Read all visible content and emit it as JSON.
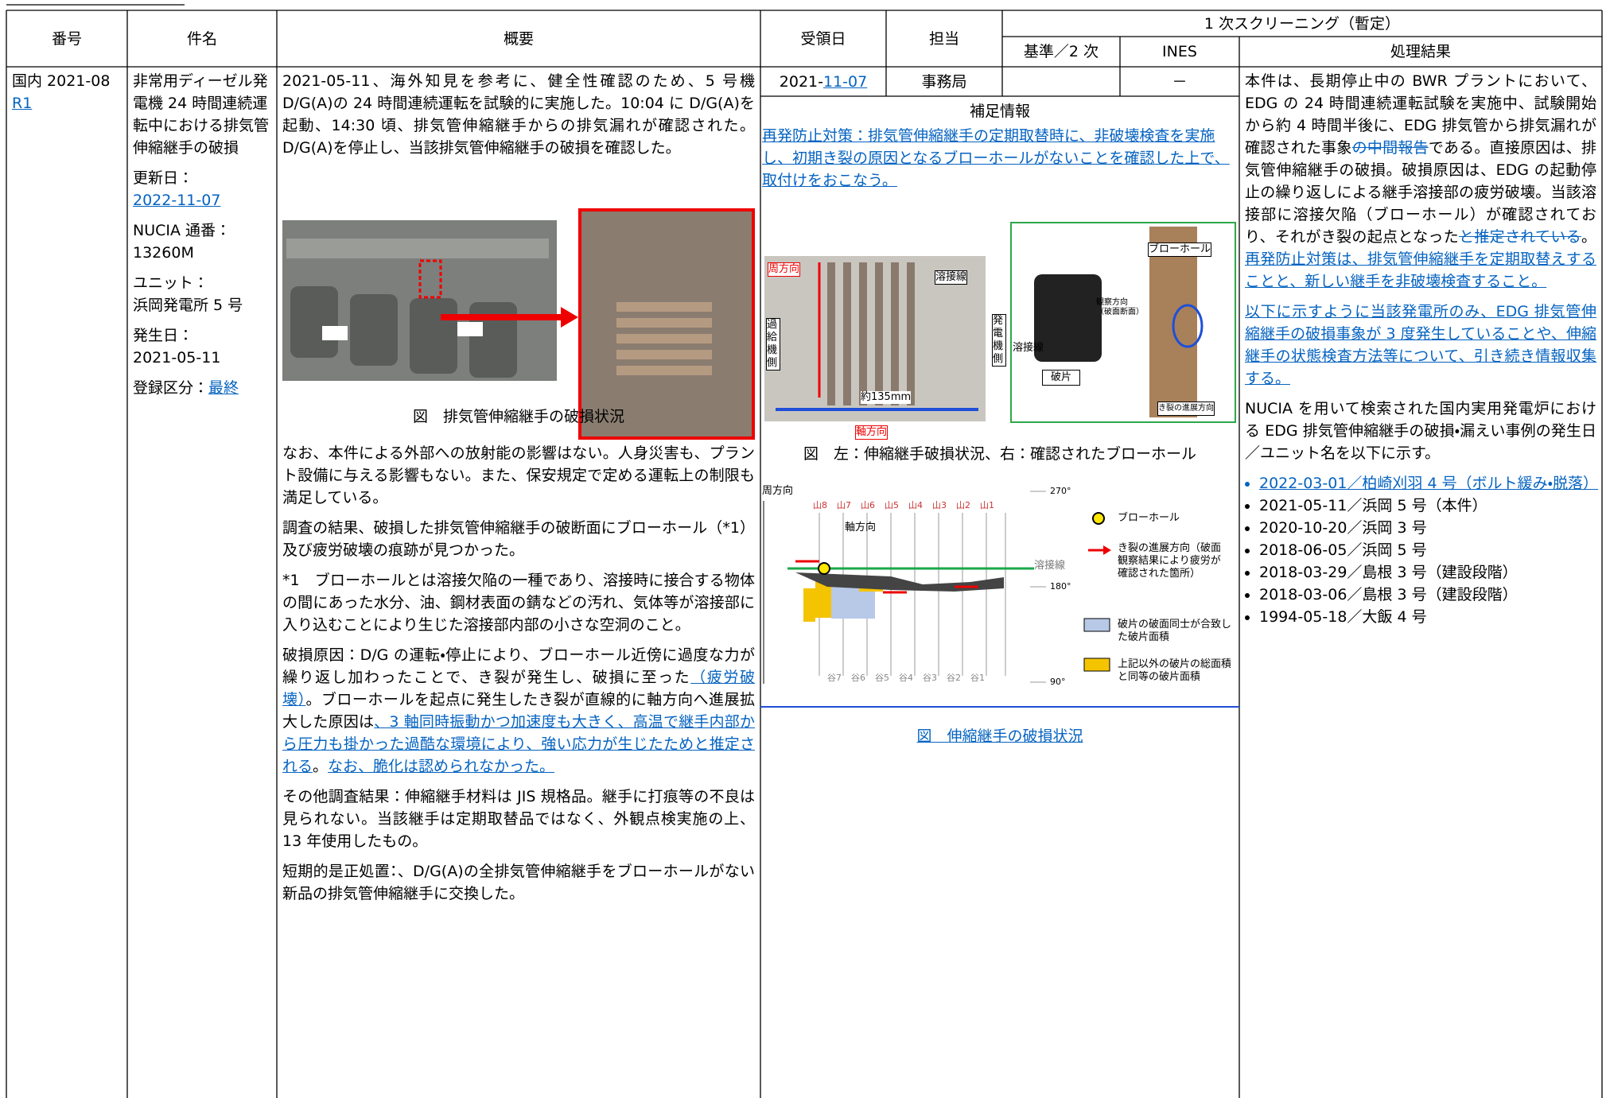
{
  "header": {
    "no": "番号",
    "subject": "件名",
    "summary": "概要",
    "received": "受領日",
    "staff": "担当",
    "screening": "1 次スクリーニング（暫定）",
    "criteria": "基準／2 次",
    "ines": "INES",
    "result": "処理結果"
  },
  "record": {
    "no": "国内 2021-08",
    "rev": "R1",
    "subject": "非常用ディーゼル発電機 24 時間連続運転中における排気管伸縮継手の破損",
    "updated_label": "更新日：",
    "updated": "2022-11-07",
    "nucia_label": "NUCIA 通番：",
    "nucia": "13260M",
    "unit_label": "ユニット：",
    "unit": "浜岡発電所 5 号",
    "date_label": "発生日：",
    "date": "2021-05-11",
    "class_label": "登録区分：",
    "class": "最終",
    "summary": [
      [
        "2021-05-11、海外知見を参考に、健全性確認のため、5 号機 D/G(A)の 24 時間連続運転を試験的に実施した。10:04 に D/G(A)を起動、14:30 頃、排気管伸縮継手からの排気漏れが確認された。D/G(A)を停止し、当該排気管伸縮継手の破損を確認した。"
      ],
      [
        "なお、本件による外部への放射能の影響はない。人身災害も、プラント設備に与える影響もない。また、保安規定で定める運転上の制限も満足している。"
      ],
      [
        "調査の結果、破損した排気管伸縮継手の破断面にブローホール（*1）及び疲労破壊の痕跡が見つかった。"
      ],
      [
        "*1　ブローホールとは溶接欠陥の一種であり、溶接時に接合する物体の間にあった水分、油、鋼材表面の錆などの汚れ、気体等が溶接部に入り込むことにより生じた溶接部内部の小さな空洞のこと。"
      ],
      [
        "破損原因：D/G の運転・停止により、ブローホール近傍に過度な力が繰り返し加わったことで、き裂が発生し、破損に至った",
        "（疲労破壊）",
        "。ブローホールを起点に発生したき裂が直線的に軸方向へ進展拡大した原因は",
        "、3 軸同時振動かつ加速度も大きく、高温で継手内部から圧力も掛かった過酷な環境により、強い応力が生じたためと推定される",
        "。",
        "なお、脆化は認められなかった。"
      ],
      [
        "その他調査結果：伸縮継手材料は JIS 規格品。継手に打痕等の不良は見られない。当該継手は定期取替品ではなく、外観点検実施の上、13 年使用したもの。"
      ],
      [
        "短期的是正処置：、D/G(A)の全排気管伸縮継手をブローホールがない新品の排気管伸縮継手に交換した。"
      ]
    ],
    "summary_caption": "図　排気管伸縮継手の破損状況",
    "received_year": "2021-",
    "received_day": "11-07",
    "staff": "事務局",
    "ines": "－",
    "supplement_title": "補足情報",
    "supplement": "再発防止対策：排気管伸縮継手の定期取替時に、非破壊検査を実施し、初期き裂の原因となるブローホールがないことを確認した上で、取付けをおこなう。",
    "photo_labels": {
      "circ": "周方向",
      "weld": "溶接線",
      "turbo": "過給機側",
      "gen": "発電機側",
      "len": "約135mm",
      "axial": "軸方向",
      "blowhole": "ブローホール",
      "view": "観察方向（破面断面）",
      "weld2": "溶接線",
      "piece": "破片",
      "crack": "き裂の進展方向"
    },
    "photo_caption": "図　左：伸縮継手破損状況、右：確認されたブローホール",
    "map": {
      "circ": "周方向",
      "axial": "軸方向",
      "weld": "溶接線",
      "peaks": [
        "山8",
        "山7",
        "山6",
        "山5",
        "山4",
        "山3",
        "山2",
        "山1"
      ],
      "valleys": [
        "谷7",
        "谷6",
        "谷5",
        "谷4",
        "谷3",
        "谷2",
        "谷1"
      ],
      "angles": [
        "270°",
        "180°",
        "90°"
      ],
      "legend": [
        "ブローホール",
        "き裂の進展方向（破面観察結果により疲労が確認された箇所）",
        "破片の破面同士が合致した破片面積",
        "上記以外の破片の総面積と同等の破片面積"
      ]
    },
    "map_caption": "図　伸縮継手の破損状況",
    "result": [
      [
        "本件は、長期停止中の BWR プラントにおいて、EDG の 24 時間連続運転試験を実施中、試験開始から約 4 時間半後に、EDG 排気管から排気漏れが確認された事象",
        "の中間報告",
        "である。直接原因は、排気管伸縮継手の破損。破損原因は、EDG の起動停止の繰り返しによる継手溶接部の疲労破壊。当該溶接部に溶接欠陥（ブローホール）が確認されており、それがき裂の起点となった",
        "と推定されている",
        "。",
        "再発防止対策は、排気管伸縮継手を定期取替えすることと、新しい継手を非破壊検査すること。"
      ],
      [
        "以下に示すように当該発電所のみ、EDG 排気管伸縮継手の破損事象が 3 度発生していることや、伸縮継手の状態検査方法等について、引き続き情報収集する。"
      ],
      [
        "NUCIA を用いて検索された国内実用発電炉における EDG 排気管伸縮継手の破損・漏えい事例の発生日／ユニット名を以下に示す。"
      ]
    ],
    "cases": [
      "2022-03-01／柏崎刈羽 4 号（ボルト緩み・脱落）",
      "2021-05-11／浜岡 5 号（本件）",
      "2020-10-20／浜岡 3 号",
      "2018-06-05／浜岡 5 号",
      "2018-03-29／島根 3 号（建設段階）",
      "2018-03-06／島根 3 号（建設段階）",
      "1994-05-18／大飯 4 号"
    ]
  }
}
